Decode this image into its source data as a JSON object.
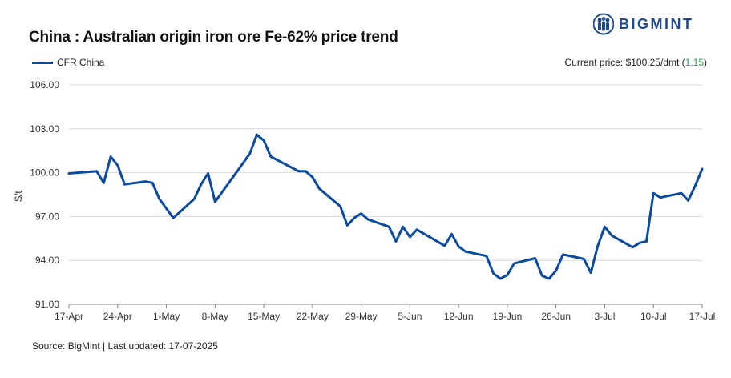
{
  "title": "China : Australian origin iron ore Fe-62% price trend",
  "brand": {
    "name": "BIGMINT",
    "logo_icon": "bigmint-people-icon",
    "color": "#1f4b8e"
  },
  "legend": {
    "label": "CFR China",
    "color": "#0a4a9f"
  },
  "current_price": {
    "prefix": "Current price: ",
    "value": "$100.25/dmt",
    "open": " (",
    "change": "1.15",
    "close": ")",
    "change_color": "#2e9e47"
  },
  "source": "Source: BigMint | Last updated: 17-07-2025",
  "chart_data": {
    "type": "line",
    "ylabel": "$/t",
    "ylim": [
      91,
      106
    ],
    "yticks": [
      "91.00",
      "94.00",
      "97.00",
      "100.00",
      "103.00",
      "106.00"
    ],
    "grid": true,
    "legend_position": "top-left",
    "x_ticks": [
      {
        "label": "17-Apr",
        "day": 0
      },
      {
        "label": "24-Apr",
        "day": 7
      },
      {
        "label": "1-May",
        "day": 14
      },
      {
        "label": "8-May",
        "day": 21
      },
      {
        "label": "15-May",
        "day": 28
      },
      {
        "label": "22-May",
        "day": 35
      },
      {
        "label": "29-May",
        "day": 42
      },
      {
        "label": "5-Jun",
        "day": 49
      },
      {
        "label": "12-Jun",
        "day": 56
      },
      {
        "label": "19-Jun",
        "day": 63
      },
      {
        "label": "26-Jun",
        "day": 70
      },
      {
        "label": "3-Jul",
        "day": 77
      },
      {
        "label": "10-Jul",
        "day": 84
      },
      {
        "label": "17-Jul",
        "day": 91
      }
    ],
    "series": [
      {
        "name": "CFR China",
        "color": "#0a4a9f",
        "points": [
          [
            0,
            99.95
          ],
          [
            4,
            100.1
          ],
          [
            5,
            99.3
          ],
          [
            6,
            101.1
          ],
          [
            7,
            100.5
          ],
          [
            8,
            99.2
          ],
          [
            11,
            99.4
          ],
          [
            12,
            99.3
          ],
          [
            13,
            98.2
          ],
          [
            15,
            96.9
          ],
          [
            18,
            98.2
          ],
          [
            19,
            99.2
          ],
          [
            20,
            99.95
          ],
          [
            21,
            98.0
          ],
          [
            26,
            101.3
          ],
          [
            27,
            102.6
          ],
          [
            28,
            102.2
          ],
          [
            29,
            101.1
          ],
          [
            33,
            100.1
          ],
          [
            34,
            100.1
          ],
          [
            35,
            99.7
          ],
          [
            36,
            98.9
          ],
          [
            39,
            97.7
          ],
          [
            40,
            96.4
          ],
          [
            41,
            96.9
          ],
          [
            42,
            97.2
          ],
          [
            43,
            96.8
          ],
          [
            46,
            96.3
          ],
          [
            47,
            95.3
          ],
          [
            48,
            96.3
          ],
          [
            49,
            95.6
          ],
          [
            50,
            96.1
          ],
          [
            54,
            95.0
          ],
          [
            55,
            95.8
          ],
          [
            56,
            94.95
          ],
          [
            57,
            94.6
          ],
          [
            60,
            94.3
          ],
          [
            61,
            93.1
          ],
          [
            62,
            92.75
          ],
          [
            63,
            93.0
          ],
          [
            64,
            93.8
          ],
          [
            67,
            94.15
          ],
          [
            68,
            92.95
          ],
          [
            69,
            92.75
          ],
          [
            70,
            93.3
          ],
          [
            71,
            94.4
          ],
          [
            74,
            94.1
          ],
          [
            75,
            93.15
          ],
          [
            76,
            95.0
          ],
          [
            77,
            96.3
          ],
          [
            78,
            95.7
          ],
          [
            81,
            94.9
          ],
          [
            82,
            95.2
          ],
          [
            83,
            95.3
          ],
          [
            84,
            98.6
          ],
          [
            85,
            98.3
          ],
          [
            88,
            98.6
          ],
          [
            89,
            98.1
          ],
          [
            90,
            99.1
          ],
          [
            91,
            100.25
          ]
        ]
      }
    ]
  }
}
